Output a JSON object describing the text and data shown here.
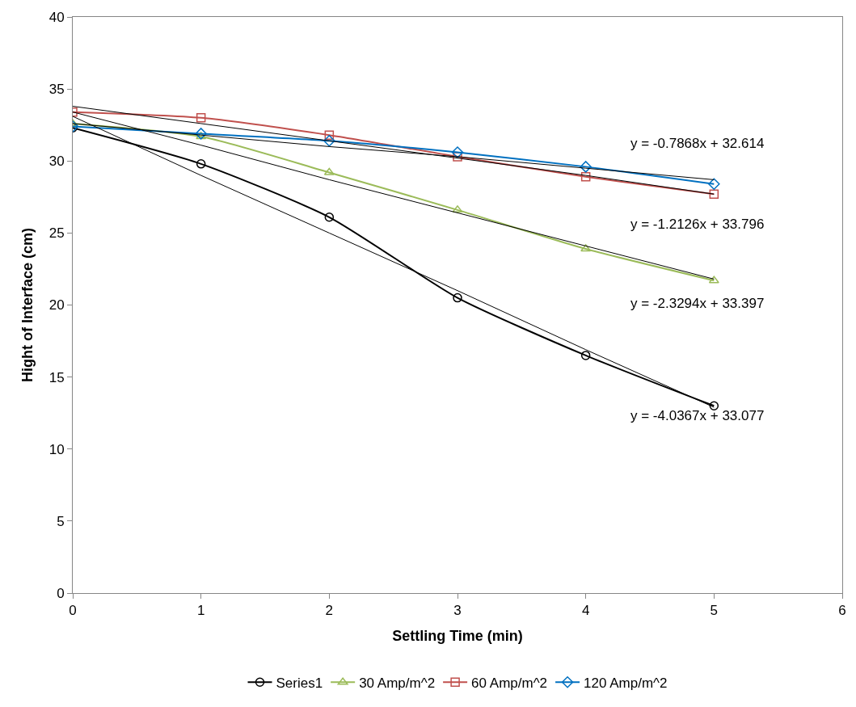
{
  "chart_data": {
    "type": "line",
    "xlabel": "Settling Time (min)",
    "ylabel": "Hight of Interface (cm)",
    "x": [
      0,
      1,
      2,
      3,
      4,
      5
    ],
    "series": [
      {
        "name": "Series1",
        "color": "#000000",
        "marker": "circle",
        "values": [
          32.3,
          29.8,
          26.1,
          20.5,
          16.5,
          13.0
        ]
      },
      {
        "name": "30 Amp/m^2",
        "color": "#9bbb59",
        "marker": "triangle",
        "values": [
          32.6,
          31.7,
          29.2,
          26.6,
          23.9,
          21.7
        ]
      },
      {
        "name": "60 Amp/m^2",
        "color": "#c0504d",
        "marker": "square",
        "values": [
          33.4,
          33.0,
          31.8,
          30.3,
          28.9,
          27.7
        ]
      },
      {
        "name": "120 Amp/m^2",
        "color": "#0070c0",
        "marker": "diamond",
        "values": [
          32.4,
          31.9,
          31.4,
          30.6,
          29.6,
          28.4
        ]
      },
      {
        "type": "line",
        "color": "#000000",
        "marker": "none",
        "values": [
          33.1,
          29.0,
          25.0,
          21.0,
          16.9,
          12.9
        ]
      },
      {
        "type": "line",
        "color": "#000000",
        "marker": "none",
        "values": [
          33.4,
          31.1,
          28.7,
          26.4,
          24.1,
          21.8
        ]
      },
      {
        "type": "line",
        "color": "#000000",
        "marker": "none",
        "values": [
          33.8,
          32.6,
          31.4,
          30.2,
          29.0,
          27.7
        ]
      },
      {
        "type": "line",
        "color": "#000000",
        "marker": "none",
        "values": [
          32.6,
          31.8,
          31.0,
          30.3,
          29.5,
          28.7
        ]
      }
    ],
    "annotations": [
      "y = -0.7868x + 32.614",
      "y = -1.2126x + 33.796",
      "y = -2.3294x + 33.397",
      "y = -4.0367x + 33.077"
    ],
    "xlim": [
      0,
      6
    ],
    "xticks": [
      0,
      1,
      2,
      3,
      4,
      5,
      6
    ],
    "ylim": [
      0,
      40
    ],
    "yticks": [
      0,
      5,
      10,
      15,
      20,
      25,
      30,
      35,
      40
    ],
    "legend": "bottom",
    "line_style": "solid"
  }
}
